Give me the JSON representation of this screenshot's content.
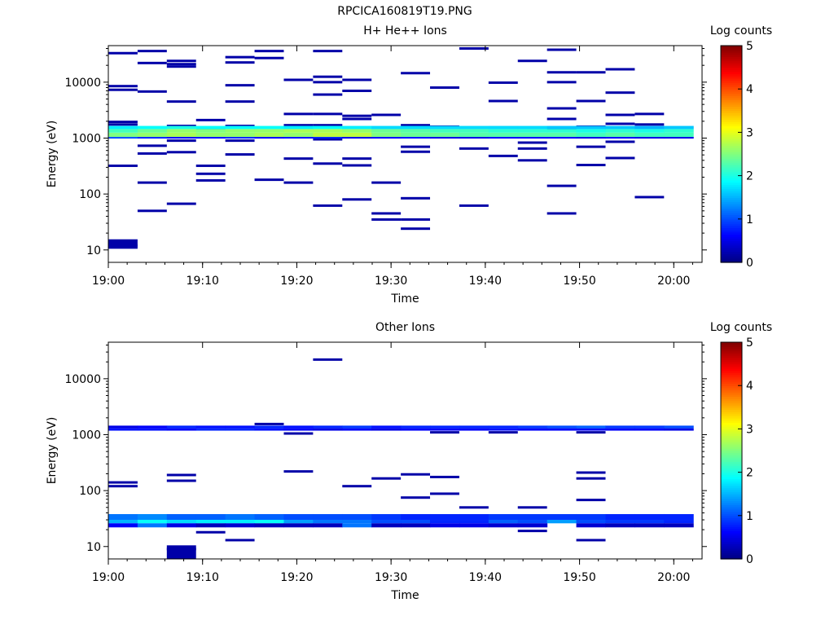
{
  "figure": {
    "title": "RPCICA160819T19.PNG"
  },
  "chart_data": [
    {
      "type": "heatmap",
      "title": "H+ He++ Ions",
      "xlabel": "Time",
      "ylabel": "Energy (eV)",
      "yscale": "log",
      "xlim": [
        "19:00",
        "20:03"
      ],
      "ylim": [
        6,
        45000
      ],
      "xticks": [
        "19:00",
        "19:10",
        "19:20",
        "19:30",
        "19:40",
        "19:50",
        "20:00"
      ],
      "yticks": [
        "10",
        "100",
        "1000",
        "10000"
      ],
      "colorbar": {
        "label": "Log counts",
        "ticks": [
          "0",
          "1",
          "2",
          "3",
          "4",
          "5"
        ],
        "range": [
          0,
          5
        ],
        "colormap": "jet"
      },
      "time_bins": [
        "19:00",
        "19:03",
        "19:06",
        "19:10",
        "19:13",
        "19:16",
        "19:19",
        "19:22",
        "19:26",
        "19:29",
        "19:32",
        "19:35",
        "19:38",
        "19:42",
        "19:45",
        "19:48",
        "19:51",
        "19:54",
        "19:58",
        "20:01"
      ],
      "main_band": {
        "cells": [
          {
            "e_low": 1050,
            "e_high": 1250,
            "values": [
              2.5,
              2.6,
              2.7,
              2.6,
              2.6,
              2.7,
              2.6,
              2.8,
              2.8,
              2.5,
              2.4,
              2.4,
              2.3,
              2.3,
              2.3,
              2.3,
              2.2,
              2.3,
              2.2,
              2.2
            ]
          },
          {
            "e_low": 1250,
            "e_high": 1450,
            "values": [
              2.2,
              2.4,
              2.6,
              2.5,
              2.6,
              2.6,
              2.7,
              2.7,
              2.6,
              2.4,
              2.3,
              2.2,
              2.2,
              2.1,
              2.1,
              2.1,
              2.0,
              2.1,
              2.0,
              2.1
            ]
          },
          {
            "e_low": 1450,
            "e_high": 1650,
            "values": [
              1.8,
              1.9,
              2.0,
              1.9,
              1.9,
              1.9,
              1.8,
              1.9,
              1.8,
              1.7,
              1.7,
              1.7,
              1.7,
              1.7,
              1.7,
              1.6,
              1.6,
              1.6,
              1.5,
              1.6
            ]
          },
          {
            "e_low": 980,
            "e_high": 1050,
            "values": [
              1.0,
              0.8,
              0.6,
              0.7,
              0.8,
              0.6,
              0.7,
              0.8,
              0.5,
              0.6,
              0.7,
              0.5,
              0.5,
              0.6,
              0.6,
              0.6,
              0.5,
              0.6,
              0.5,
              0.5
            ]
          }
        ]
      },
      "sparse_counts": [
        [
          0,
          33000
        ],
        [
          0,
          8500
        ],
        [
          0,
          7300
        ],
        [
          0,
          1950
        ],
        [
          0,
          1750
        ],
        [
          0,
          320
        ],
        [
          0,
          12
        ],
        [
          1,
          36000
        ],
        [
          1,
          22000
        ],
        [
          1,
          6800
        ],
        [
          1,
          1550
        ],
        [
          1,
          730
        ],
        [
          1,
          530
        ],
        [
          1,
          160
        ],
        [
          1,
          50
        ],
        [
          2,
          24000
        ],
        [
          2,
          21000
        ],
        [
          2,
          19000
        ],
        [
          2,
          4500
        ],
        [
          2,
          1650
        ],
        [
          2,
          900
        ],
        [
          2,
          560
        ],
        [
          2,
          67
        ],
        [
          3,
          2100
        ],
        [
          3,
          1500
        ],
        [
          3,
          320
        ],
        [
          3,
          230
        ],
        [
          3,
          175
        ],
        [
          4,
          28000
        ],
        [
          4,
          22500
        ],
        [
          4,
          8800
        ],
        [
          4,
          4500
        ],
        [
          4,
          1650
        ],
        [
          4,
          900
        ],
        [
          4,
          510
        ],
        [
          5,
          36000
        ],
        [
          5,
          27000
        ],
        [
          5,
          180
        ],
        [
          6,
          11000
        ],
        [
          6,
          2700
        ],
        [
          6,
          1700
        ],
        [
          6,
          430
        ],
        [
          6,
          160
        ],
        [
          7,
          36000
        ],
        [
          7,
          12500
        ],
        [
          7,
          10000
        ],
        [
          7,
          6000
        ],
        [
          7,
          2700
        ],
        [
          7,
          1700
        ],
        [
          7,
          950
        ],
        [
          7,
          350
        ],
        [
          7,
          62
        ],
        [
          8,
          11000
        ],
        [
          8,
          7000
        ],
        [
          8,
          2500
        ],
        [
          8,
          2200
        ],
        [
          8,
          1550
        ],
        [
          8,
          430
        ],
        [
          8,
          325
        ],
        [
          8,
          80
        ],
        [
          9,
          2600
        ],
        [
          9,
          160
        ],
        [
          9,
          45
        ],
        [
          9,
          35
        ],
        [
          10,
          14500
        ],
        [
          10,
          1700
        ],
        [
          10,
          700
        ],
        [
          10,
          570
        ],
        [
          10,
          84
        ],
        [
          10,
          35
        ],
        [
          10,
          24
        ],
        [
          11,
          8000
        ],
        [
          11,
          1600
        ],
        [
          12,
          40000
        ],
        [
          12,
          650
        ],
        [
          12,
          62
        ],
        [
          13,
          9800
        ],
        [
          13,
          4600
        ],
        [
          13,
          1550
        ],
        [
          13,
          480
        ],
        [
          14,
          24000
        ],
        [
          14,
          830
        ],
        [
          14,
          650
        ],
        [
          14,
          400
        ],
        [
          15,
          38000
        ],
        [
          15,
          15000
        ],
        [
          15,
          10000
        ],
        [
          15,
          3400
        ],
        [
          15,
          2200
        ],
        [
          15,
          1500
        ],
        [
          15,
          140
        ],
        [
          15,
          45
        ],
        [
          16,
          15000
        ],
        [
          16,
          4600
        ],
        [
          16,
          1600
        ],
        [
          16,
          700
        ],
        [
          16,
          330
        ],
        [
          17,
          17000
        ],
        [
          17,
          6500
        ],
        [
          17,
          2600
        ],
        [
          17,
          1800
        ],
        [
          17,
          860
        ],
        [
          17,
          440
        ],
        [
          18,
          2700
        ],
        [
          18,
          1750
        ],
        [
          18,
          88
        ]
      ]
    },
    {
      "type": "heatmap",
      "title": "Other Ions",
      "xlabel": "Time",
      "ylabel": "Energy (eV)",
      "yscale": "log",
      "xlim": [
        "19:00",
        "20:03"
      ],
      "ylim": [
        6,
        45000
      ],
      "xticks": [
        "19:00",
        "19:10",
        "19:20",
        "19:30",
        "19:40",
        "19:50",
        "20:00"
      ],
      "yticks": [
        "10",
        "100",
        "1000",
        "10000"
      ],
      "colorbar": {
        "label": "Log counts",
        "ticks": [
          "0",
          "1",
          "2",
          "3",
          "4",
          "5"
        ],
        "range": [
          0,
          5
        ],
        "colormap": "jet"
      },
      "bands": [
        {
          "e_low": 1180,
          "e_high": 1300,
          "values": [
            0.7,
            0.7,
            0.6,
            0.8,
            0.8,
            0.7,
            0.6,
            0.5,
            0.6,
            0.5,
            0.6,
            0.6,
            0.6,
            0.7,
            0.6,
            0.6,
            0.6,
            0.6,
            0.6,
            0.5
          ]
        },
        {
          "e_low": 1300,
          "e_high": 1450,
          "values": [
            0.5,
            0.6,
            0.8,
            0.7,
            0.7,
            0.8,
            0.7,
            0.8,
            0.9,
            0.7,
            0.8,
            0.8,
            0.8,
            0.8,
            0.9,
            1.0,
            1.1,
            0.9,
            0.9,
            1.0
          ]
        },
        {
          "e_low": 30,
          "e_high": 38,
          "values": [
            1.2,
            1.3,
            1.1,
            1.1,
            1.2,
            1.1,
            1.0,
            1.0,
            1.0,
            0.9,
            0.8,
            0.8,
            0.8,
            0.9,
            0.9,
            0.9,
            0.9,
            0.8,
            0.8,
            0.8
          ]
        },
        {
          "e_low": 26,
          "e_high": 30,
          "values": [
            1.5,
            1.9,
            1.7,
            1.8,
            1.8,
            1.9,
            1.4,
            1.2,
            1.2,
            1.0,
            1.0,
            0.8,
            0.8,
            1.1,
            1.0,
            1.4,
            1.0,
            0.9,
            0.9,
            0.8
          ]
        },
        {
          "e_low": 22,
          "e_high": 26,
          "values": [
            0.6,
            1.2,
            0.5,
            0.3,
            0.4,
            0.3,
            0.3,
            0.3,
            1.2,
            0.3,
            0.3,
            0.5,
            0.5,
            0.4,
            0.4,
            null,
            0.4,
            0.3,
            0.3,
            0.3
          ]
        }
      ],
      "sparse_counts": [
        [
          0,
          140
        ],
        [
          0,
          120
        ],
        [
          2,
          190
        ],
        [
          2,
          150
        ],
        [
          2,
          9
        ],
        [
          3,
          18
        ],
        [
          4,
          13
        ],
        [
          5,
          1550
        ],
        [
          6,
          1050
        ],
        [
          6,
          220
        ],
        [
          7,
          22000
        ],
        [
          8,
          120
        ],
        [
          9,
          165
        ],
        [
          10,
          195
        ],
        [
          10,
          75
        ],
        [
          11,
          1100
        ],
        [
          11,
          175
        ],
        [
          11,
          88
        ],
        [
          12,
          50
        ],
        [
          13,
          1100
        ],
        [
          14,
          50
        ],
        [
          14,
          19
        ],
        [
          16,
          1100
        ],
        [
          16,
          210
        ],
        [
          16,
          165
        ],
        [
          16,
          68
        ],
        [
          16,
          13
        ]
      ]
    }
  ]
}
